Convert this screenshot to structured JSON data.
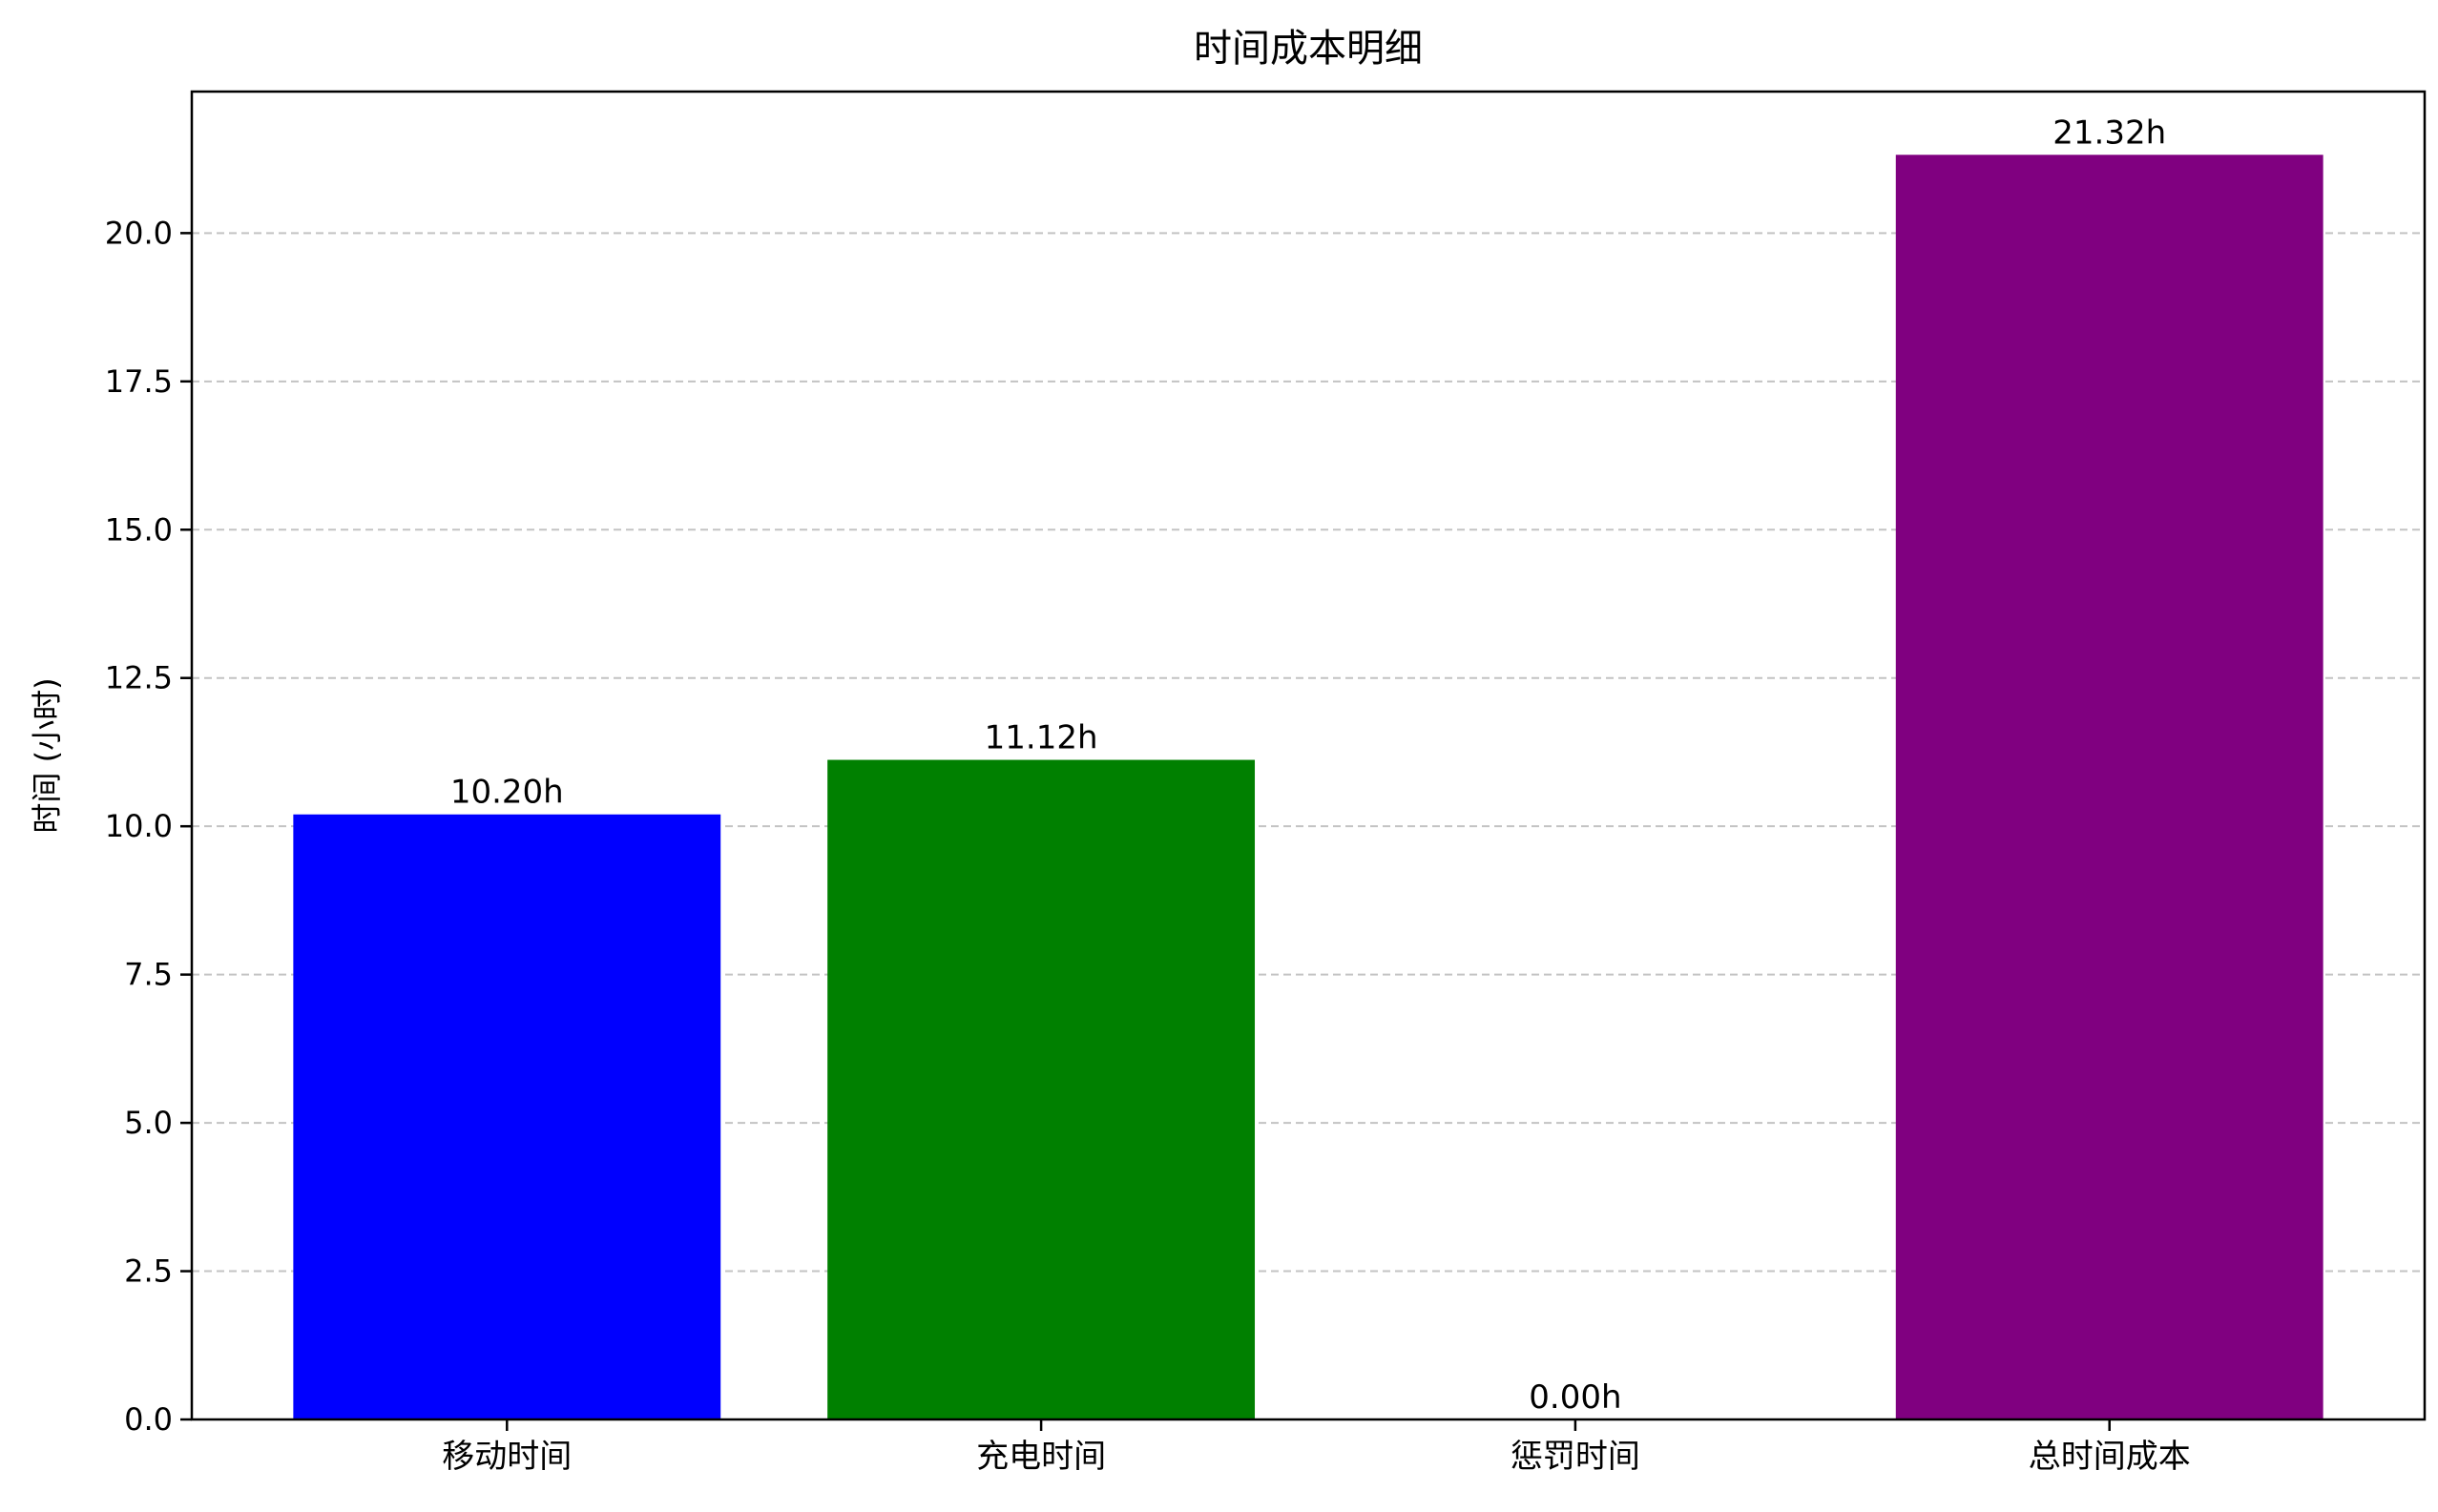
{
  "chart_data": {
    "type": "bar",
    "title": "时间成本明细",
    "xlabel": "",
    "ylabel": "时间 (小时)",
    "categories": [
      "移动时间",
      "充电时间",
      "惩罚时间",
      "总时间成本"
    ],
    "values": [
      10.2,
      11.12,
      0.0,
      21.32
    ],
    "data_labels": [
      "10.20h",
      "11.12h",
      "0.00h",
      "21.32h"
    ],
    "colors": [
      "#0000ff",
      "#008000",
      "#ff0000",
      "#800080"
    ],
    "ylim": [
      0,
      22.386
    ],
    "yticks": [
      0,
      2.5,
      5,
      7.5,
      10,
      12.5,
      15,
      17.5,
      20
    ],
    "ytick_labels": [
      "0.0",
      "2.5",
      "5.0",
      "7.5",
      "10.0",
      "12.5",
      "15.0",
      "17.5",
      "20.0"
    ],
    "grid": {
      "y": true,
      "x": false,
      "style": "dashed",
      "color": "#b0b0b0"
    },
    "legend": "none"
  }
}
